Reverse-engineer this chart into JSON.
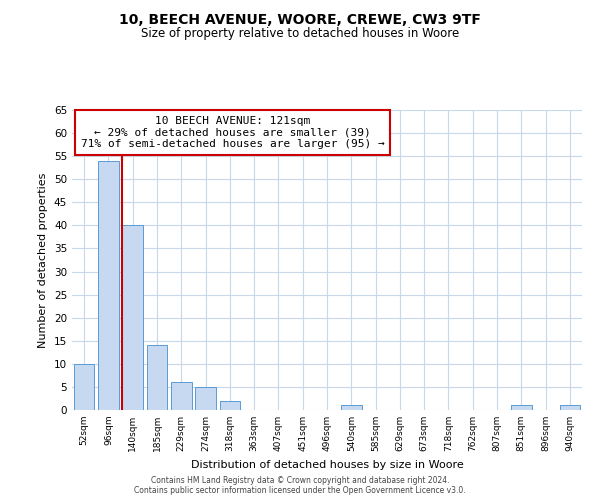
{
  "title": "10, BEECH AVENUE, WOORE, CREWE, CW3 9TF",
  "subtitle": "Size of property relative to detached houses in Woore",
  "xlabel": "Distribution of detached houses by size in Woore",
  "ylabel": "Number of detached properties",
  "bar_labels": [
    "52sqm",
    "96sqm",
    "140sqm",
    "185sqm",
    "229sqm",
    "274sqm",
    "318sqm",
    "363sqm",
    "407sqm",
    "451sqm",
    "496sqm",
    "540sqm",
    "585sqm",
    "629sqm",
    "673sqm",
    "718sqm",
    "762sqm",
    "807sqm",
    "851sqm",
    "896sqm",
    "940sqm"
  ],
  "bar_values": [
    10,
    54,
    40,
    14,
    6,
    5,
    2,
    0,
    0,
    0,
    0,
    1,
    0,
    0,
    0,
    0,
    0,
    0,
    1,
    0,
    1
  ],
  "bar_color": "#c6d9f1",
  "bar_edge_color": "#5a9bd4",
  "ylim": [
    0,
    65
  ],
  "yticks": [
    0,
    5,
    10,
    15,
    20,
    25,
    30,
    35,
    40,
    45,
    50,
    55,
    60,
    65
  ],
  "property_line_color": "#cc0000",
  "annotation_text": "10 BEECH AVENUE: 121sqm\n← 29% of detached houses are smaller (39)\n71% of semi-detached houses are larger (95) →",
  "annotation_box_color": "#cc0000",
  "footer_line1": "Contains HM Land Registry data © Crown copyright and database right 2024.",
  "footer_line2": "Contains public sector information licensed under the Open Government Licence v3.0.",
  "background_color": "#ffffff",
  "grid_color": "#c8d8e8",
  "title_fontsize": 10,
  "subtitle_fontsize": 8.5
}
